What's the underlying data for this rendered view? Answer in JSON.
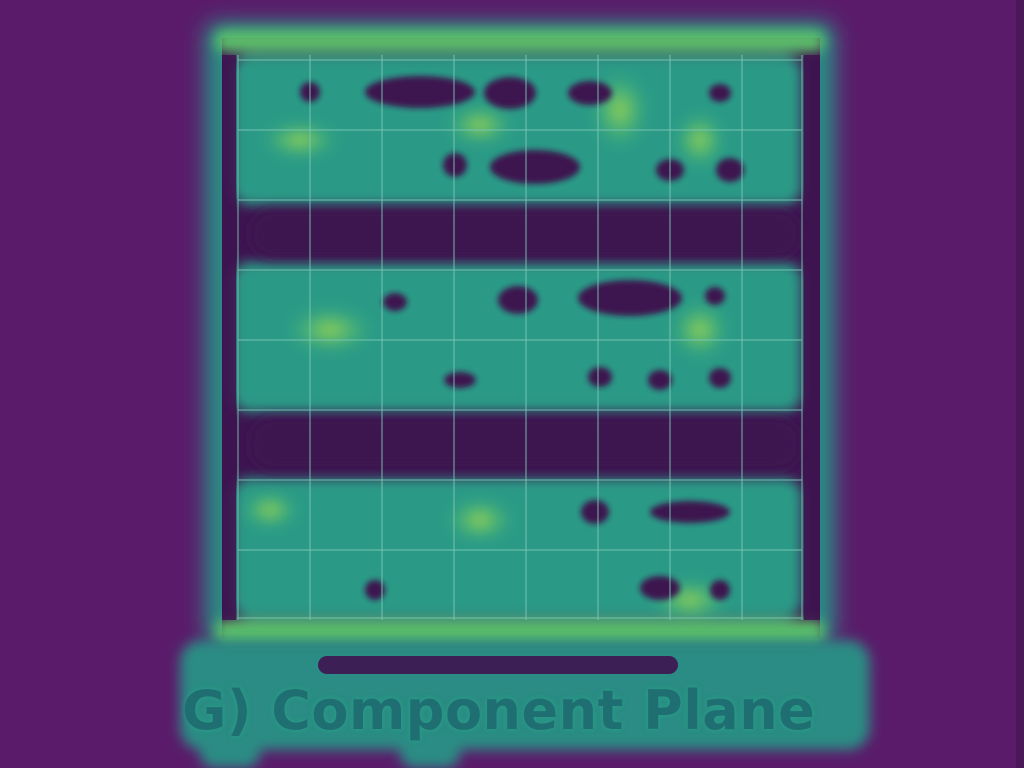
{
  "image": {
    "caption": "G) Component Plane",
    "colormap": "viridis",
    "colors": {
      "background": "#5a1c6a",
      "panel_low": "#3e1450",
      "mid": "#2a8c84",
      "high": "#3fbf7a",
      "peak": "#a6d84a",
      "grid": "#7fc8b8",
      "caption": "#1f6f72"
    }
  }
}
